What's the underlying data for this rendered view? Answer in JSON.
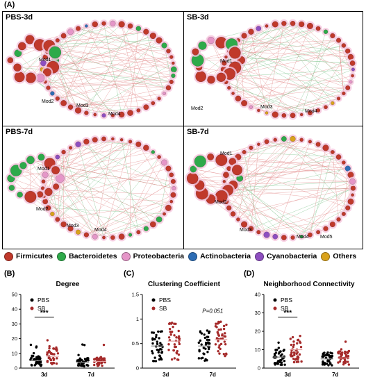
{
  "figure_label": "(A)",
  "networks": [
    {
      "title": "PBS-3d",
      "modules": [
        "Mod1",
        "Mod2",
        "Mod3",
        "Mod4"
      ]
    },
    {
      "title": "SB-3d",
      "modules": [
        "Mod1",
        "Mod2",
        "Mod3",
        "Mod4"
      ]
    },
    {
      "title": "PBS-7d",
      "modules": [
        "Mod1",
        "Mod2",
        "Mod3",
        "Mod4"
      ]
    },
    {
      "title": "SB-7d",
      "modules": [
        "Mod1",
        "Mod2",
        "Mod3",
        "Mod4",
        "Mod5"
      ]
    }
  ],
  "phylum_legend": [
    {
      "label": "Firmicutes",
      "color": "#c0392b"
    },
    {
      "label": "Bacteroidetes",
      "color": "#2eaa4a"
    },
    {
      "label": "Proteobacteria",
      "color": "#e596c8"
    },
    {
      "label": "Actinobacteria",
      "color": "#2d6db5"
    },
    {
      "label": "Cyanobacteria",
      "color": "#8e4fc0"
    },
    {
      "label": "Others",
      "color": "#d9a21c"
    }
  ],
  "chart_data": [
    {
      "panel": "(B)",
      "type": "scatter",
      "title": "Degree",
      "categories": [
        "3d",
        "7d"
      ],
      "series": [
        {
          "name": "PBS",
          "color": "#000000",
          "means": [
            5,
            4
          ]
        },
        {
          "name": "SB",
          "color": "#a52a2a",
          "means": [
            8,
            4.5
          ]
        }
      ],
      "ylim": [
        0,
        50
      ],
      "yticks": [
        0,
        10,
        20,
        30,
        40,
        50
      ],
      "annotation": {
        "text": "***",
        "category": "3d"
      }
    },
    {
      "panel": "(C)",
      "type": "scatter",
      "title": "Clustering Coefficient",
      "categories": [
        "3d",
        "7d"
      ],
      "series": [
        {
          "name": "PBS",
          "color": "#000000",
          "means": [
            0.45,
            0.45
          ]
        },
        {
          "name": "SB",
          "color": "#a52a2a",
          "means": [
            0.55,
            0.58
          ]
        }
      ],
      "ylim": [
        0,
        1.5
      ],
      "yticks": [
        0.0,
        0.5,
        1.0,
        1.5
      ],
      "annotation": {
        "text": "P=0.051",
        "category": "7d"
      }
    },
    {
      "panel": "(D)",
      "type": "scatter",
      "title": "Neighborhood Connectivity",
      "categories": [
        "3d",
        "7d"
      ],
      "series": [
        {
          "name": "PBS",
          "color": "#000000",
          "means": [
            6,
            5
          ]
        },
        {
          "name": "SB",
          "color": "#a52a2a",
          "means": [
            10,
            5.5
          ]
        }
      ],
      "ylim": [
        0,
        40
      ],
      "yticks": [
        0,
        10,
        20,
        30,
        40
      ],
      "annotation": {
        "text": "***",
        "category": "3d"
      }
    }
  ]
}
